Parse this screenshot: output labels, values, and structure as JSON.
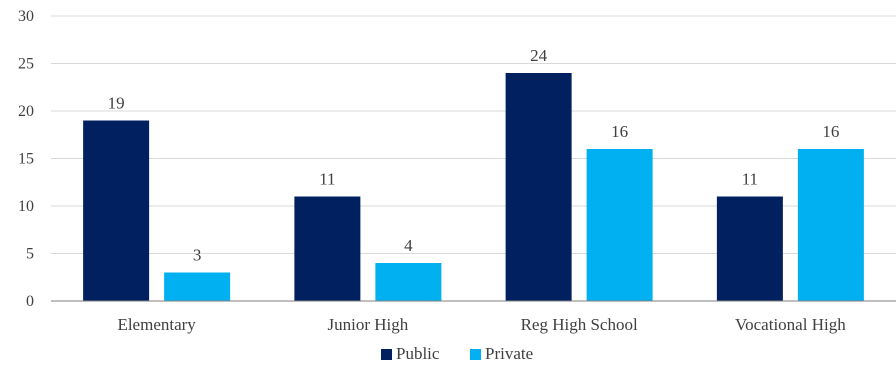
{
  "chart_data": {
    "type": "bar",
    "categories": [
      "Elementary",
      "Junior High",
      "Reg High School",
      "Vocational High"
    ],
    "series": [
      {
        "name": "Public",
        "values": [
          19,
          11,
          24,
          11
        ],
        "color": "#002060"
      },
      {
        "name": "Private",
        "values": [
          3,
          4,
          16,
          16
        ],
        "color": "#00b0f0"
      }
    ],
    "ylim": [
      0,
      30
    ],
    "yticks": [
      0,
      5,
      10,
      15,
      20,
      25,
      30
    ],
    "grid": true,
    "legend_position": "bottom-center",
    "data_labels": true
  }
}
